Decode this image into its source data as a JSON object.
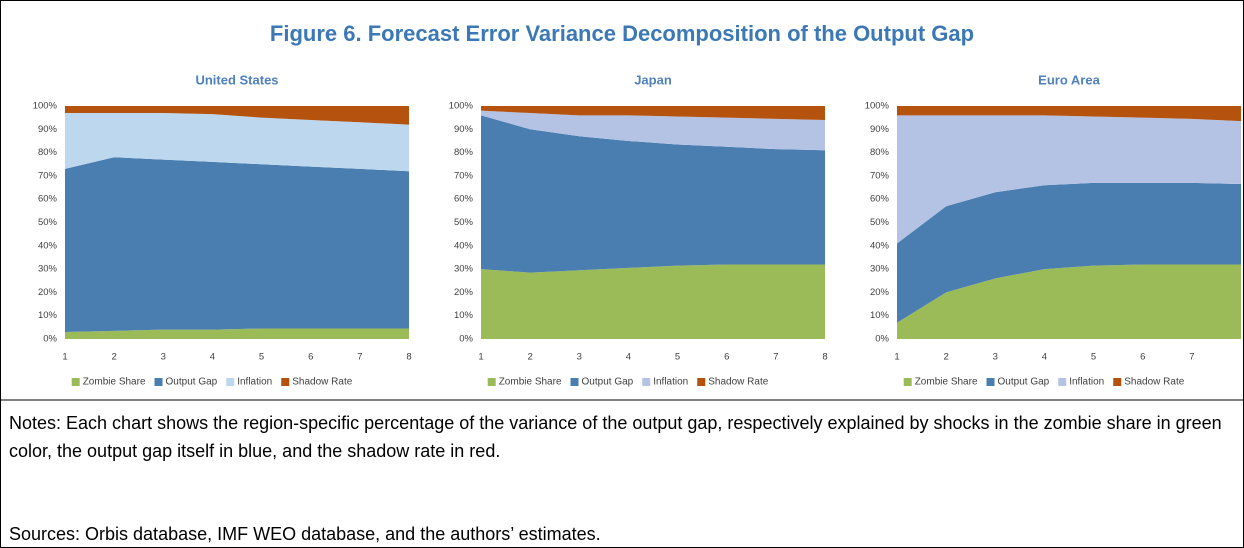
{
  "figure_title": "Figure 6. Forecast Error Variance Decomposition of the Output Gap",
  "notes": "Notes: Each chart shows the region-specific percentage of the variance of the output gap, respectively explained by shocks in the zombie share in green color, the output gap itself in blue, and the shadow rate in red.",
  "sources": "Sources: Orbis database, IMF WEO database, and the authors’ estimates.",
  "chart_data": [
    {
      "type": "stacked_area",
      "title": "United States",
      "categories": [
        "1",
        "2",
        "3",
        "4",
        "5",
        "6",
        "7",
        "8"
      ],
      "ylim": [
        0,
        100
      ],
      "yticks": [
        {
          "value": 0,
          "label": "0%"
        },
        {
          "value": 10,
          "label": "10%"
        },
        {
          "value": 20,
          "label": "20%"
        },
        {
          "value": 30,
          "label": "30%"
        },
        {
          "value": 40,
          "label": "40%"
        },
        {
          "value": 50,
          "label": "50%"
        },
        {
          "value": 60,
          "label": "60%"
        },
        {
          "value": 70,
          "label": "70%"
        },
        {
          "value": 80,
          "label": "80%"
        },
        {
          "value": 90,
          "label": "90%"
        },
        {
          "value": 100,
          "label": "100%"
        }
      ],
      "legend": "bottom",
      "series": [
        {
          "name": "Zombie Share",
          "color": "#9bbb59",
          "values": [
            3,
            3.5,
            4,
            4,
            4.5,
            4.5,
            4.5,
            4.5
          ]
        },
        {
          "name": "Output Gap",
          "color": "#4a7eb0",
          "values": [
            70,
            74.5,
            73,
            72,
            70.5,
            69.5,
            68.5,
            67.5
          ]
        },
        {
          "name": "Inflation",
          "color": "#bdd7ee",
          "values": [
            24,
            19,
            20,
            20.5,
            20,
            20,
            20,
            20
          ]
        },
        {
          "name": "Shadow Rate",
          "color": "#b5520e",
          "values": [
            3,
            3,
            3,
            3.5,
            5,
            6,
            7,
            8
          ]
        }
      ]
    },
    {
      "type": "stacked_area",
      "title": "Japan",
      "categories": [
        "1",
        "2",
        "3",
        "4",
        "5",
        "6",
        "7",
        "8"
      ],
      "ylim": [
        0,
        100
      ],
      "yticks": [
        {
          "value": 0,
          "label": "0%"
        },
        {
          "value": 10,
          "label": "10%"
        },
        {
          "value": 20,
          "label": "20%"
        },
        {
          "value": 30,
          "label": "30%"
        },
        {
          "value": 40,
          "label": "40%"
        },
        {
          "value": 50,
          "label": "50%"
        },
        {
          "value": 60,
          "label": "60%"
        },
        {
          "value": 70,
          "label": "70%"
        },
        {
          "value": 80,
          "label": "80%"
        },
        {
          "value": 90,
          "label": "90%"
        },
        {
          "value": 100,
          "label": "100%"
        }
      ],
      "legend": "bottom",
      "series": [
        {
          "name": "Zombie Share",
          "color": "#9bbb59",
          "values": [
            30,
            28.5,
            29.5,
            30.5,
            31.5,
            32,
            32,
            32
          ]
        },
        {
          "name": "Output Gap",
          "color": "#4a7eb0",
          "values": [
            66,
            61.5,
            57.5,
            54.5,
            52,
            50.5,
            49.5,
            49
          ]
        },
        {
          "name": "Inflation",
          "color": "#b4c3e3",
          "values": [
            2,
            7,
            9,
            11,
            12,
            12.5,
            13,
            13
          ]
        },
        {
          "name": "Shadow Rate",
          "color": "#b5520e",
          "values": [
            2,
            3,
            4,
            4,
            4.5,
            5,
            5.5,
            6
          ]
        }
      ]
    },
    {
      "type": "stacked_area",
      "title": "Euro Area",
      "categories": [
        "1",
        "2",
        "3",
        "4",
        "5",
        "6",
        "7",
        null
      ],
      "ylim": [
        0,
        100
      ],
      "yticks": [
        {
          "value": 0,
          "label": "0%"
        },
        {
          "value": 10,
          "label": "10%"
        },
        {
          "value": 20,
          "label": "20%"
        },
        {
          "value": 30,
          "label": "30%"
        },
        {
          "value": 40,
          "label": "40%"
        },
        {
          "value": 50,
          "label": "50%"
        },
        {
          "value": 60,
          "label": "60%"
        },
        {
          "value": 70,
          "label": "70%"
        },
        {
          "value": 80,
          "label": "80%"
        },
        {
          "value": 90,
          "label": "90%"
        },
        {
          "value": 100,
          "label": "100%"
        }
      ],
      "legend": "bottom",
      "series": [
        {
          "name": "Zombie Share",
          "color": "#9bbb59",
          "values": [
            7,
            20,
            26,
            30,
            31.5,
            32,
            32,
            32
          ]
        },
        {
          "name": "Output Gap",
          "color": "#4a7eb0",
          "values": [
            34,
            37,
            37,
            36,
            35.5,
            35,
            35,
            34.5
          ]
        },
        {
          "name": "Inflation",
          "color": "#b4c3e3",
          "values": [
            55,
            39,
            33,
            30,
            28.5,
            28,
            27.5,
            27
          ]
        },
        {
          "name": "Shadow Rate",
          "color": "#b5520e",
          "values": [
            4,
            4,
            4,
            4,
            4.5,
            5,
            5.5,
            6.5
          ]
        }
      ]
    }
  ]
}
